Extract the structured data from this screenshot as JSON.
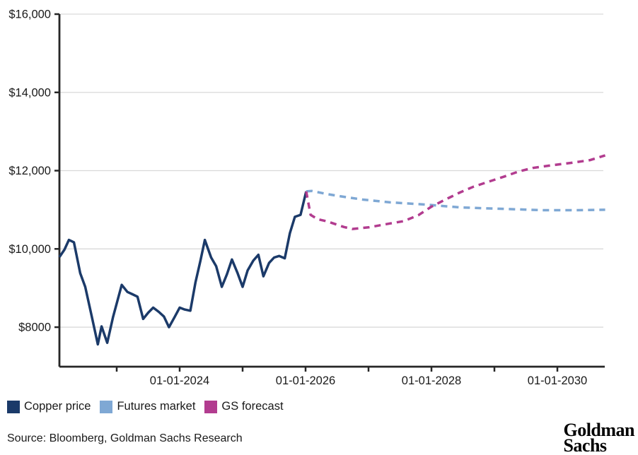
{
  "chart_data": {
    "type": "line",
    "title": "",
    "xlabel": "",
    "ylabel": "",
    "ylim": [
      6990,
      16000
    ],
    "xlim": [
      2022.09,
      2030.76
    ],
    "grid": true,
    "legend_position": "bottom-left",
    "y_ticks": [
      {
        "value": 16000,
        "label": "$16,000"
      },
      {
        "value": 14000,
        "label": "$14,000"
      },
      {
        "value": 12000,
        "label": "$12,000"
      },
      {
        "value": 10000,
        "label": "$10,000"
      },
      {
        "value": 8000,
        "label": "$8000"
      }
    ],
    "x_ticks": [
      {
        "value": 2023,
        "label": ""
      },
      {
        "value": 2024,
        "label": "01-01-2024"
      },
      {
        "value": 2025,
        "label": ""
      },
      {
        "value": 2026,
        "label": "01-01-2026"
      },
      {
        "value": 2027,
        "label": ""
      },
      {
        "value": 2028,
        "label": "01-01-2028"
      },
      {
        "value": 2029,
        "label": ""
      },
      {
        "value": 2030,
        "label": "01-01-2030"
      }
    ],
    "series": [
      {
        "name": "Copper price",
        "color": "#1b3a69",
        "dashed": false,
        "points": [
          [
            2022.09,
            9790
          ],
          [
            2022.17,
            9980
          ],
          [
            2022.24,
            10230
          ],
          [
            2022.32,
            10170
          ],
          [
            2022.42,
            9380
          ],
          [
            2022.5,
            9030
          ],
          [
            2022.6,
            8300
          ],
          [
            2022.7,
            7560
          ],
          [
            2022.76,
            8020
          ],
          [
            2022.85,
            7600
          ],
          [
            2022.94,
            8250
          ],
          [
            2023.08,
            9080
          ],
          [
            2023.17,
            8900
          ],
          [
            2023.25,
            8840
          ],
          [
            2023.33,
            8780
          ],
          [
            2023.42,
            8210
          ],
          [
            2023.5,
            8370
          ],
          [
            2023.58,
            8500
          ],
          [
            2023.67,
            8390
          ],
          [
            2023.75,
            8270
          ],
          [
            2023.83,
            8000
          ],
          [
            2023.92,
            8260
          ],
          [
            2024.0,
            8500
          ],
          [
            2024.08,
            8450
          ],
          [
            2024.17,
            8420
          ],
          [
            2024.25,
            9140
          ],
          [
            2024.33,
            9700
          ],
          [
            2024.4,
            10230
          ],
          [
            2024.5,
            9780
          ],
          [
            2024.58,
            9560
          ],
          [
            2024.67,
            9030
          ],
          [
            2024.75,
            9350
          ],
          [
            2024.83,
            9730
          ],
          [
            2024.92,
            9380
          ],
          [
            2025.0,
            9030
          ],
          [
            2025.08,
            9450
          ],
          [
            2025.17,
            9700
          ],
          [
            2025.25,
            9850
          ],
          [
            2025.33,
            9300
          ],
          [
            2025.42,
            9640
          ],
          [
            2025.5,
            9780
          ],
          [
            2025.58,
            9820
          ],
          [
            2025.67,
            9760
          ],
          [
            2025.75,
            10400
          ],
          [
            2025.83,
            10820
          ],
          [
            2025.92,
            10870
          ],
          [
            2026.01,
            11470
          ]
        ]
      },
      {
        "name": "Futures market",
        "color": "#7fa8d4",
        "dashed": true,
        "points": [
          [
            2026.01,
            11470
          ],
          [
            2026.1,
            11480
          ],
          [
            2026.35,
            11400
          ],
          [
            2026.53,
            11350
          ],
          [
            2026.91,
            11260
          ],
          [
            2027.34,
            11190
          ],
          [
            2027.93,
            11130
          ],
          [
            2028.46,
            11060
          ],
          [
            2029.02,
            11030
          ],
          [
            2029.78,
            10990
          ],
          [
            2030.3,
            10990
          ],
          [
            2030.76,
            11000
          ]
        ]
      },
      {
        "name": "GS forecast",
        "color": "#b23c8f",
        "dashed": true,
        "points": [
          [
            2026.01,
            11470
          ],
          [
            2026.08,
            10870
          ],
          [
            2026.19,
            10760
          ],
          [
            2026.35,
            10700
          ],
          [
            2026.61,
            10560
          ],
          [
            2026.74,
            10510
          ],
          [
            2027.0,
            10550
          ],
          [
            2027.34,
            10650
          ],
          [
            2027.56,
            10710
          ],
          [
            2027.79,
            10860
          ],
          [
            2028.0,
            11080
          ],
          [
            2028.22,
            11260
          ],
          [
            2028.45,
            11440
          ],
          [
            2028.67,
            11590
          ],
          [
            2028.93,
            11730
          ],
          [
            2029.16,
            11850
          ],
          [
            2029.39,
            11980
          ],
          [
            2029.61,
            12070
          ],
          [
            2029.92,
            12140
          ],
          [
            2030.22,
            12200
          ],
          [
            2030.52,
            12270
          ],
          [
            2030.76,
            12390
          ]
        ]
      }
    ]
  },
  "legend": {
    "items": [
      {
        "label": "Copper price"
      },
      {
        "label": "Futures market"
      },
      {
        "label": "GS forecast"
      }
    ]
  },
  "footer": {
    "source": "Source: Bloomberg, Goldman Sachs Research"
  },
  "logo": {
    "line1": "Goldman",
    "line2": "Sachs"
  },
  "colors": {
    "axis": "#262626",
    "gridline": "#d9d9d9",
    "tick_label": "#1a1a1a"
  }
}
